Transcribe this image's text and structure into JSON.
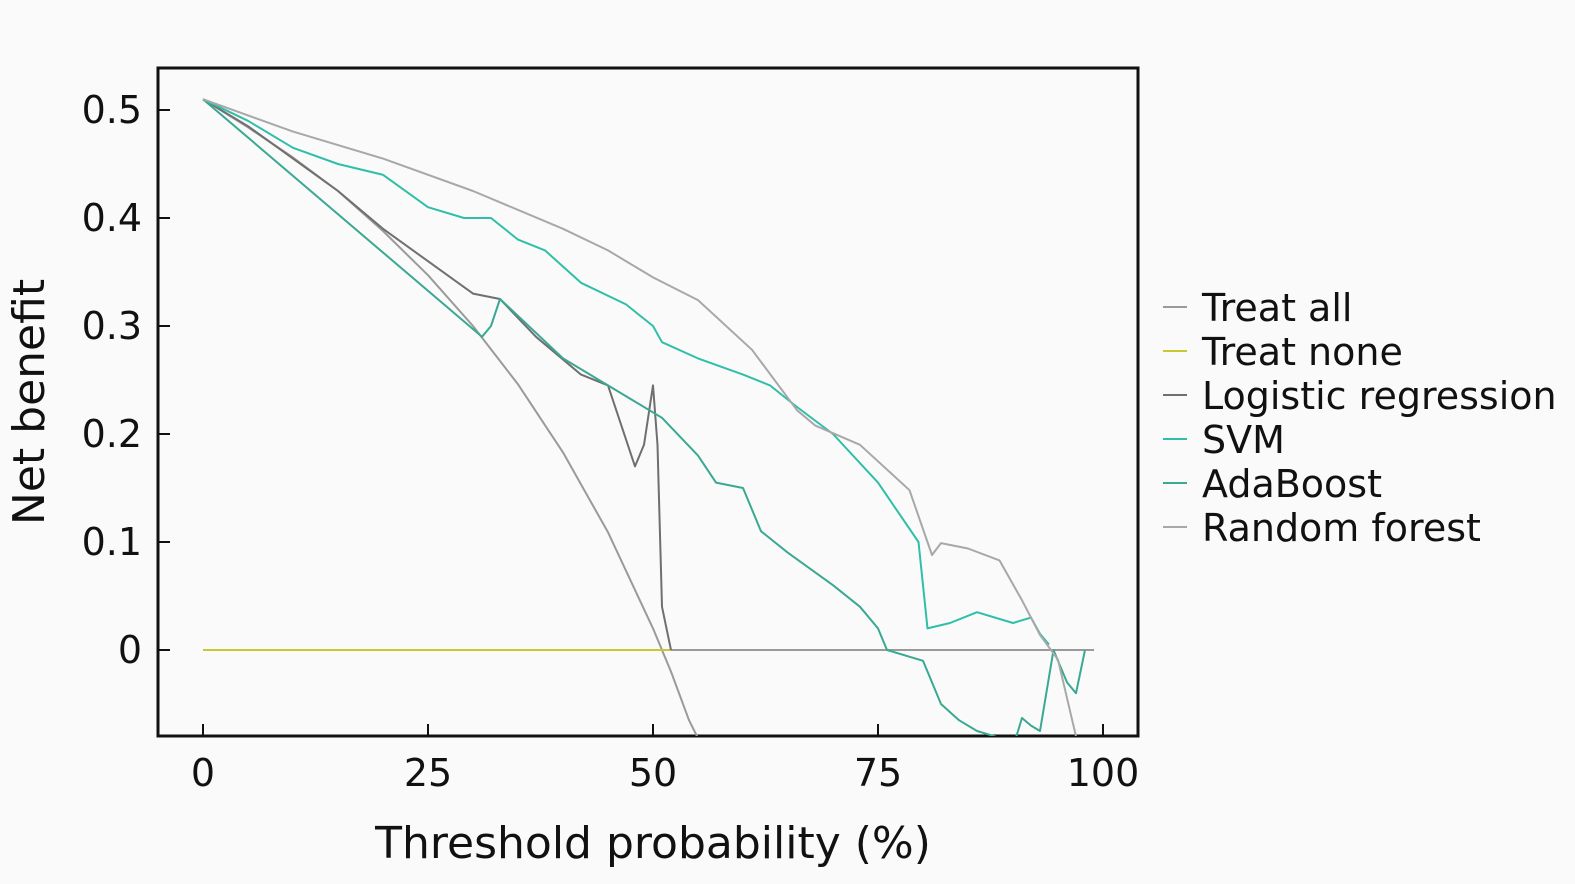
{
  "chart_data": {
    "type": "line",
    "title": "",
    "xlabel": "Threshold probability (%)",
    "ylabel": "Net benefit",
    "xlim": [
      -5,
      104
    ],
    "ylim": [
      -0.08,
      0.54
    ],
    "xticks": [
      "0",
      "25",
      "50",
      "75",
      "100"
    ],
    "xtick_values": [
      0,
      25,
      50,
      75,
      100
    ],
    "yticks": [
      "0",
      "0.1",
      "0.2",
      "0.3",
      "0.4",
      "0.5"
    ],
    "ytick_values": [
      0,
      0.1,
      0.2,
      0.3,
      0.4,
      0.5
    ],
    "grid": false,
    "legend_position": "right",
    "series": [
      {
        "name": "Treat all",
        "color": "#9a9a9a",
        "prevalence": 0.51,
        "x": [
          0,
          5,
          10,
          15,
          20,
          25,
          30,
          35,
          40,
          45,
          50,
          52,
          54,
          55.5
        ],
        "y": [
          0.51,
          0.484,
          0.456,
          0.425,
          0.388,
          0.347,
          0.3,
          0.246,
          0.183,
          0.109,
          0.02,
          -0.02,
          -0.065,
          -0.09
        ]
      },
      {
        "name": "Treat none",
        "color": "#c8c832",
        "x": [
          0,
          52,
          99
        ],
        "y": [
          0,
          0,
          0
        ]
      },
      {
        "name": "Logistic regression",
        "color": "#6f6f6f",
        "x": [
          0,
          5,
          10,
          15,
          20,
          25,
          30,
          33,
          37,
          42,
          45,
          48,
          49,
          50,
          50.5,
          51,
          52
        ],
        "y": [
          0.51,
          0.485,
          0.455,
          0.425,
          0.39,
          0.36,
          0.33,
          0.325,
          0.29,
          0.255,
          0.245,
          0.17,
          0.19,
          0.245,
          0.19,
          0.04,
          0
        ]
      },
      {
        "name": "SVM",
        "color": "#2fbfa8",
        "x": [
          0,
          5,
          10,
          15,
          20,
          25,
          29,
          32,
          35,
          38,
          42,
          47,
          50,
          51,
          55,
          60,
          63,
          66,
          70,
          75,
          79.5,
          80.5,
          83,
          86,
          90,
          92,
          93,
          94
        ],
        "y": [
          0.51,
          0.49,
          0.465,
          0.45,
          0.44,
          0.41,
          0.4,
          0.4,
          0.38,
          0.37,
          0.34,
          0.32,
          0.3,
          0.285,
          0.27,
          0.255,
          0.245,
          0.225,
          0.2,
          0.155,
          0.1,
          0.02,
          0.025,
          0.035,
          0.025,
          0.03,
          0.015,
          0.005
        ]
      },
      {
        "name": "AdaBoost",
        "color": "#3aa892",
        "x": [
          0,
          31,
          32,
          33,
          40,
          45,
          48,
          51,
          55,
          57,
          60,
          62,
          65,
          70,
          73,
          75,
          76,
          80,
          82,
          84,
          86,
          88,
          90,
          91,
          92,
          93,
          94.5,
          96,
          97,
          98
        ],
        "y": [
          0.51,
          0.29,
          0.3,
          0.325,
          0.27,
          0.245,
          0.23,
          0.215,
          0.18,
          0.155,
          0.15,
          0.11,
          0.09,
          0.06,
          0.04,
          0.02,
          0,
          -0.01,
          -0.05,
          -0.065,
          -0.075,
          -0.08,
          -0.09,
          -0.063,
          -0.07,
          -0.075,
          0,
          -0.03,
          -0.04,
          0
        ]
      },
      {
        "name": "Random forest",
        "color": "#a8a8a8",
        "x": [
          0,
          10,
          20,
          30,
          40,
          45,
          50,
          55,
          61,
          66,
          68,
          73,
          78.5,
          81,
          82,
          85,
          88.5,
          91,
          93,
          95,
          97
        ],
        "y": [
          0.51,
          0.48,
          0.455,
          0.425,
          0.39,
          0.37,
          0.345,
          0.324,
          0.278,
          0.222,
          0.208,
          0.19,
          0.148,
          0.088,
          0.099,
          0.094,
          0.083,
          0.046,
          0.014,
          -0.009,
          -0.08
        ]
      }
    ]
  }
}
